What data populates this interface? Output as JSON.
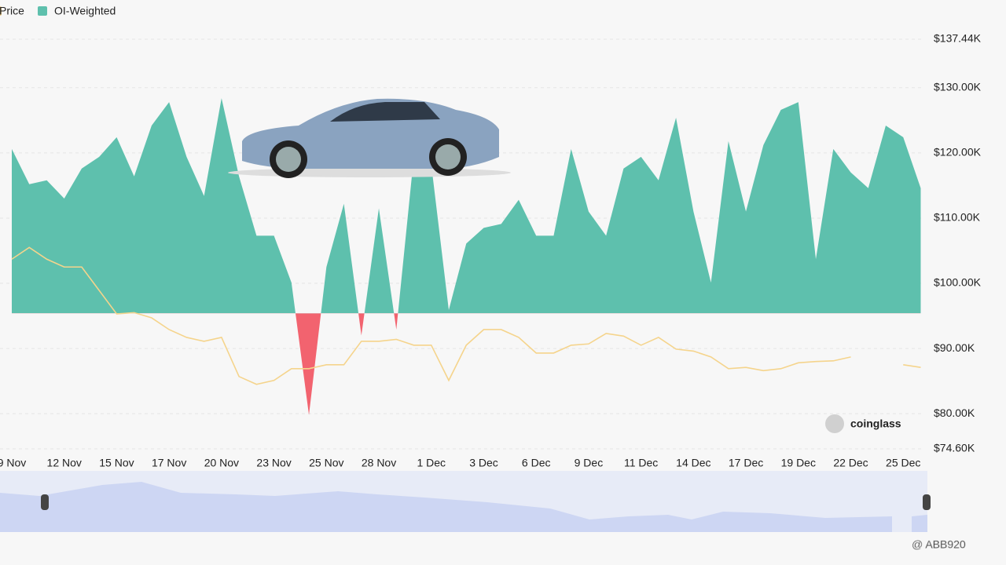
{
  "chart_data": {
    "type": "area",
    "legend": "top-left",
    "grid": true,
    "baseline": 95.4,
    "categories": [
      "9 Nov",
      null,
      null,
      "12 Nov",
      null,
      null,
      "15 Nov",
      null,
      null,
      "17 Nov",
      null,
      null,
      "20 Nov",
      null,
      null,
      "23 Nov",
      null,
      null,
      "25 Nov",
      null,
      null,
      "28 Nov",
      null,
      null,
      "1 Dec",
      null,
      null,
      "3 Dec",
      null,
      null,
      "6 Dec",
      null,
      null,
      "9 Dec",
      null,
      null,
      "11 Dec",
      null,
      null,
      "14 Dec",
      null,
      null,
      "17 Dec",
      null,
      null,
      "19 Dec",
      null,
      null,
      "22 Dec",
      null,
      null,
      "25 Dec",
      null
    ],
    "ylim": [
      74.6,
      137.44
    ],
    "yticks": [
      {
        "value": 74.6,
        "label": "$74.60K"
      },
      {
        "value": 80,
        "label": "$80.00K"
      },
      {
        "value": 90,
        "label": "$90.00K"
      },
      {
        "value": 100,
        "label": "$100.00K"
      },
      {
        "value": 110,
        "label": "$110.00K"
      },
      {
        "value": 120,
        "label": "$120.00K"
      },
      {
        "value": 130,
        "label": "$130.00K"
      },
      {
        "value": 137.44,
        "label": "$137.44K"
      }
    ],
    "series": [
      {
        "name": "Price",
        "type": "line",
        "color": "#f5d48c",
        "values": [
          103.7,
          105.5,
          103.7,
          102.5,
          102.5,
          98.9,
          95.3,
          95.5,
          94.7,
          92.9,
          91.7,
          91.1,
          91.7,
          85.7,
          84.5,
          85.1,
          86.9,
          86.9,
          87.5,
          87.5,
          91.1,
          91.1,
          91.4,
          90.5,
          90.5,
          85.1,
          90.5,
          92.9,
          92.9,
          91.7,
          89.3,
          89.3,
          90.5,
          90.7,
          92.3,
          91.9,
          90.5,
          91.7,
          89.9,
          89.6,
          88.7,
          86.9,
          87.1,
          86.6,
          86.9,
          87.8,
          88.0,
          88.1,
          88.7,
          null,
          null,
          87.5,
          87.1
        ]
      },
      {
        "name": "OI-Weighted",
        "type": "area",
        "color": "#5ec0ad",
        "negative_color": "#f2636f",
        "values": [
          120.6,
          115.2,
          115.8,
          113.0,
          117.6,
          119.4,
          122.4,
          116.4,
          124.2,
          127.8,
          119.4,
          113.4,
          128.4,
          116.4,
          107.3,
          107.3,
          100.1,
          79.8,
          102.5,
          112.2,
          92.0,
          111.5,
          92.9,
          119.4,
          118.2,
          95.9,
          106.1,
          108.5,
          109.1,
          112.8,
          107.3,
          107.3,
          120.6,
          111.0,
          107.3,
          117.6,
          119.4,
          115.8,
          125.4,
          111.0,
          100.1,
          121.8,
          111.0,
          121.2,
          126.6,
          127.8,
          103.7,
          120.6,
          117.0,
          114.6,
          124.2,
          122.4,
          114.6
        ]
      }
    ],
    "logo": "coinglass",
    "watermark": "@ ABB920"
  }
}
